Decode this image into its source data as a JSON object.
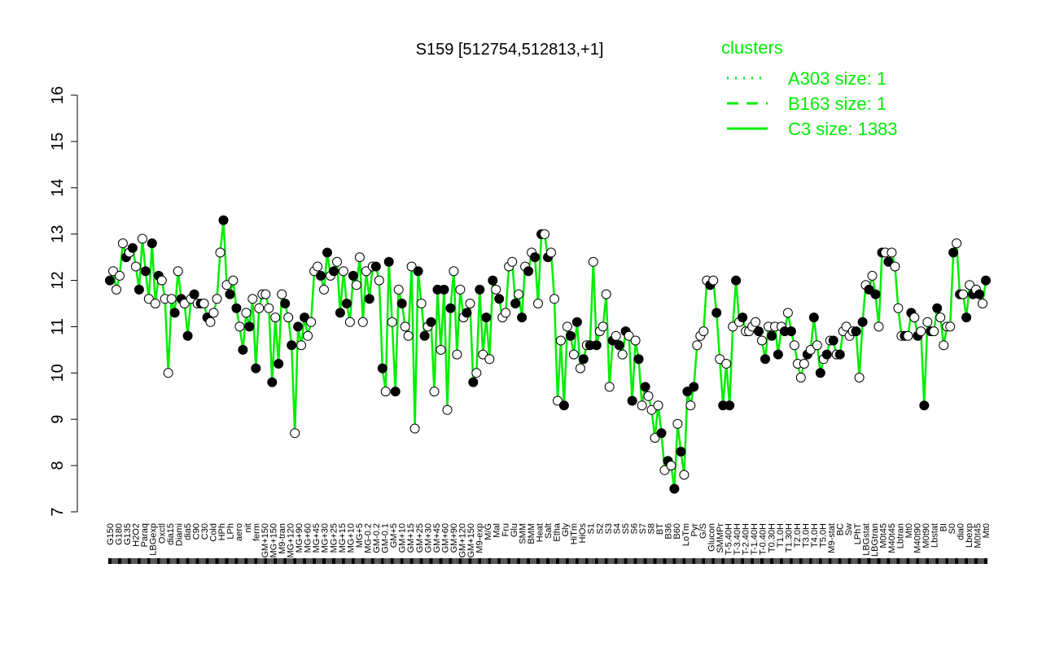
{
  "chart_data": {
    "type": "line",
    "title": "S159 [512754,512813,+1]",
    "xlabel": "",
    "ylabel": "",
    "ylim": [
      7,
      16
    ],
    "yticks": [
      7,
      8,
      9,
      10,
      11,
      12,
      13,
      14,
      15,
      16
    ],
    "grid": false,
    "legend_position": "top-right",
    "legend": {
      "title": "clusters",
      "entries": [
        {
          "label": "A303 size: 1",
          "style": "dotted"
        },
        {
          "label": "B163 size: 1",
          "style": "dashed"
        },
        {
          "label": "C3 size: 1383",
          "style": "solid"
        }
      ]
    },
    "colors": {
      "line": "#00ee00",
      "legend": "#00ee00",
      "point_dark": "#000000",
      "point_light": "#ffffff"
    },
    "x_tick_labels": [
      "G150",
      "G180",
      "G135",
      "H2O2",
      "Paraq",
      "LBGexp",
      "Oxctl",
      "dia15",
      "Diami",
      "dia5",
      "C90",
      "C30",
      "Cold",
      "HPh",
      "LPh",
      "aero",
      "nit",
      "ferm",
      "GM+150",
      "MG+150",
      "M9-tran",
      "MG+120",
      "MG+90",
      "MG+60",
      "MG+45",
      "MG+30",
      "MG+25",
      "MG+15",
      "MG+10",
      "MG+5",
      "MG-0.2",
      "GM-0.2",
      "GM-0.1",
      "GM+5",
      "GM+10",
      "GM+15",
      "GM+25",
      "GM+30",
      "GM+45",
      "GM+60",
      "GM+90",
      "GM+120",
      "GM+150",
      "M9-exp",
      "M/G",
      "Mal",
      "Fru",
      "Glu",
      "SMM",
      "BMM",
      "Heat",
      "Salt",
      "Etha",
      "Gly",
      "HiTm",
      "HiOs",
      "S1",
      "S2",
      "S3",
      "S4",
      "S5",
      "S6",
      "S7",
      "S8",
      "BT",
      "B36",
      "B60",
      "LoTm",
      "Pyr",
      "G/S",
      "Glucon",
      "SMMPr",
      "T-5.40H",
      "T-3.40H",
      "T-2.40H",
      "T-1.40H",
      "T-0.40H",
      "T0.30H",
      "T1.0H",
      "T1.30H",
      "T2.0H",
      "T3.0H",
      "T4.0H",
      "T5.0H",
      "M9-stat",
      "BC",
      "Sw",
      "LPhT",
      "LBGstat",
      "LBGtran",
      "M0t45",
      "M40t45",
      "Lbtran",
      "Mt0",
      "M40t90",
      "M0t90",
      "Lbstat",
      "BI",
      "S0",
      "dia0",
      "Lbexp",
      "M0t45",
      "Mt0"
    ],
    "series": [
      {
        "values": [
          12.0,
          12.2,
          11.8,
          12.1,
          12.8,
          12.5,
          12.6,
          12.7,
          12.3,
          11.8,
          12.9,
          12.2,
          11.6,
          12.8,
          11.5,
          12.1,
          12.0,
          11.6,
          10.0,
          11.6,
          11.3,
          12.2,
          11.6,
          11.5,
          10.8,
          11.6,
          11.7,
          11.5,
          11.5,
          11.5,
          11.2,
          11.1,
          11.3,
          11.6,
          12.6,
          13.3,
          11.9,
          11.7,
          12.0,
          11.4,
          11.0,
          10.5,
          11.3,
          11.0,
          11.6,
          10.1,
          11.4,
          11.7,
          11.7,
          11.4,
          9.8,
          11.2,
          10.2,
          11.7,
          11.5,
          11.2,
          10.6,
          8.7,
          11.0,
          10.6,
          11.2,
          10.8,
          11.1,
          12.2,
          12.3,
          12.1,
          11.8,
          12.6,
          12.1,
          12.2,
          12.4,
          11.3,
          12.2,
          11.5,
          11.1,
          12.1,
          11.9,
          12.5,
          11.1,
          12.2,
          11.6,
          12.3,
          12.3,
          12.0,
          10.1,
          9.6,
          12.4,
          11.1,
          9.6,
          11.8,
          11.5,
          11.0,
          10.8,
          12.3,
          8.8,
          12.2,
          11.5,
          10.8,
          11.0,
          11.1,
          9.6,
          11.8,
          10.5,
          11.8,
          9.2,
          11.4,
          12.2,
          10.4,
          11.8,
          11.2,
          11.3,
          11.5,
          9.8,
          10.0,
          11.8,
          10.4,
          11.2,
          10.3,
          12.0,
          11.8,
          11.6,
          11.2,
          11.3,
          12.3,
          12.4,
          11.5,
          11.7,
          11.2,
          12.3,
          12.2,
          12.6,
          12.5,
          11.5,
          13.0,
          13.0,
          12.5,
          12.6,
          11.6,
          9.4,
          10.7,
          9.3,
          11.0,
          10.8,
          10.4,
          11.1,
          10.1,
          10.3,
          10.6,
          10.6,
          12.4,
          10.6,
          10.9,
          11.0,
          11.7,
          9.7,
          10.7,
          10.8,
          10.6,
          10.4,
          10.9,
          10.8,
          9.4,
          10.7,
          10.3,
          9.3,
          9.7,
          9.5,
          9.2,
          8.6,
          9.3,
          8.7,
          7.9,
          8.1,
          8.0,
          7.5,
          8.9,
          8.3,
          7.8,
          9.6,
          9.3,
          9.7,
          10.6,
          10.8,
          10.9,
          12.0,
          11.9,
          12.0,
          11.3,
          10.3,
          9.3,
          10.2,
          9.3,
          11.0,
          12.0,
          11.1,
          11.2,
          10.9,
          10.9,
          11.0,
          11.1,
          10.9,
          10.7,
          10.3,
          11.0,
          10.8,
          11.0,
          10.4,
          11.0,
          10.9,
          11.3,
          10.9,
          10.6,
          10.2,
          9.9,
          10.2,
          10.4,
          10.5,
          11.2,
          10.6,
          10.0,
          10.3,
          10.4,
          10.7,
          10.7,
          10.4,
          10.4,
          10.9,
          11.0,
          10.8,
          10.9,
          10.9,
          9.9,
          11.1,
          11.9,
          11.8,
          12.1,
          11.7,
          11.0,
          12.6,
          12.6,
          12.4,
          12.6,
          12.3,
          11.4,
          10.8,
          10.8,
          10.8,
          11.3,
          11.2,
          10.8,
          10.9,
          9.3,
          11.1,
          10.9,
          10.9,
          11.4,
          11.2,
          10.6,
          11.0,
          11.0,
          12.6,
          12.8,
          11.7,
          11.7,
          11.2,
          11.9,
          11.7,
          11.8,
          11.7,
          11.5,
          12.0
        ]
      }
    ]
  }
}
